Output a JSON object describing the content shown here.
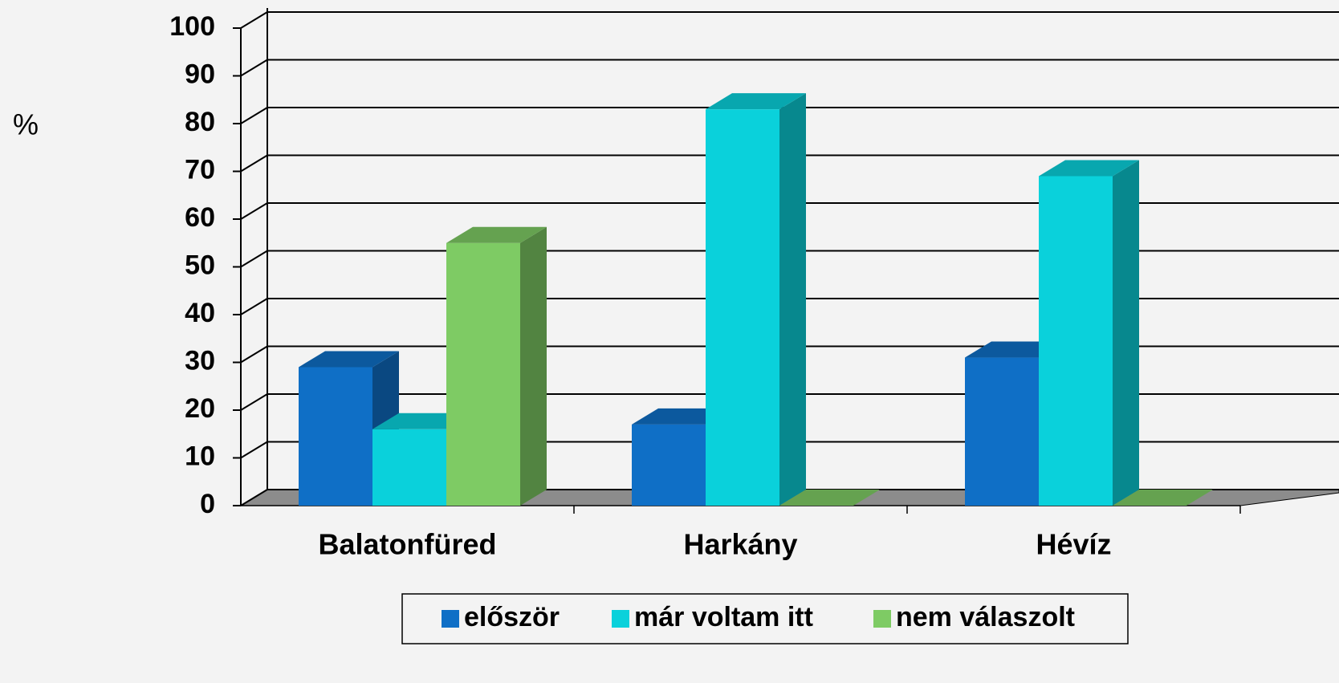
{
  "chart_data": {
    "type": "bar3d",
    "y_label": "%",
    "categories": [
      "Balatonfüred",
      "Harkány",
      "Hévíz"
    ],
    "series": [
      {
        "name": "először",
        "color": "#0f6fc6",
        "values": [
          29,
          17,
          31
        ]
      },
      {
        "name": "már voltam itt",
        "color": "#0ad1db",
        "values": [
          16,
          83,
          69
        ]
      },
      {
        "name": "nem válaszolt",
        "color": "#7ecb64",
        "values": [
          55,
          0,
          0
        ]
      }
    ],
    "ylim": [
      0,
      100
    ],
    "yticks": [
      0,
      10,
      20,
      30,
      40,
      50,
      60,
      70,
      80,
      90,
      100
    ],
    "grid": true,
    "legend": "bottom"
  }
}
